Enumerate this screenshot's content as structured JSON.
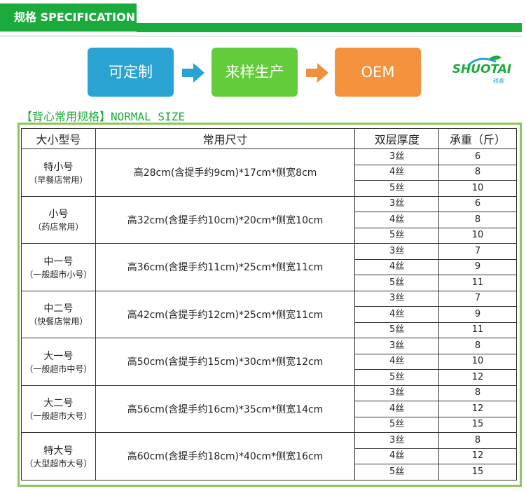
{
  "header": {
    "title": "规格 SPECIFICATION"
  },
  "flow": {
    "steps": [
      "可定制",
      "来样生产",
      "OEM"
    ]
  },
  "logo": {
    "name": "SHUOTAI",
    "sub": "硕泰"
  },
  "subtitle": "【背心常用规格】NORMAL SIZE",
  "table": {
    "headers": [
      "大小型号",
      "常用尺寸",
      "双层厚度",
      "承重（斤）"
    ],
    "rows": [
      {
        "name": "特小号",
        "note": "（早餐店常用）",
        "size": "高28cm(含提手约9cm)*17cm*侧宽8cm",
        "layers": [
          {
            "ply": "3丝",
            "weight": 6
          },
          {
            "ply": "4丝",
            "weight": 8
          },
          {
            "ply": "5丝",
            "weight": 10
          }
        ]
      },
      {
        "name": "小号",
        "note": "（药店常用）",
        "size": "高32cm(含提手约10cm)*20cm*侧宽10cm",
        "layers": [
          {
            "ply": "3丝",
            "weight": 6
          },
          {
            "ply": "4丝",
            "weight": 8
          },
          {
            "ply": "5丝",
            "weight": 10
          }
        ]
      },
      {
        "name": "中一号",
        "note": "（一般超市小号）",
        "size": "高36cm(含提手约11cm)*25cm*侧宽11cm",
        "layers": [
          {
            "ply": "3丝",
            "weight": 7
          },
          {
            "ply": "4丝",
            "weight": 9
          },
          {
            "ply": "5丝",
            "weight": 11
          }
        ]
      },
      {
        "name": "中二号",
        "note": "（快餐店常用）",
        "size": "高42cm(含提手约12cm)*25cm*侧宽11cm",
        "layers": [
          {
            "ply": "3丝",
            "weight": 7
          },
          {
            "ply": "4丝",
            "weight": 9
          },
          {
            "ply": "5丝",
            "weight": 11
          }
        ]
      },
      {
        "name": "大一号",
        "note": "（一般超市中号）",
        "size": "高50cm(含提手约15cm)*30cm*侧宽12cm",
        "layers": [
          {
            "ply": "3丝",
            "weight": 8
          },
          {
            "ply": "4丝",
            "weight": 10
          },
          {
            "ply": "5丝",
            "weight": 12
          }
        ]
      },
      {
        "name": "大二号",
        "note": "（一般超市大号）",
        "size": "高56cm(含提手约16cm)*35cm*侧宽14cm",
        "layers": [
          {
            "ply": "3丝",
            "weight": 8
          },
          {
            "ply": "4丝",
            "weight": 12
          },
          {
            "ply": "5丝",
            "weight": 15
          }
        ]
      },
      {
        "name": "特大号",
        "note": "（大型超市大号）",
        "size": "高60cm(含提手约18cm)*40cm*侧宽16cm",
        "layers": [
          {
            "ply": "3丝",
            "weight": 8
          },
          {
            "ply": "4丝",
            "weight": 12
          },
          {
            "ply": "5丝",
            "weight": 15
          }
        ]
      }
    ]
  }
}
